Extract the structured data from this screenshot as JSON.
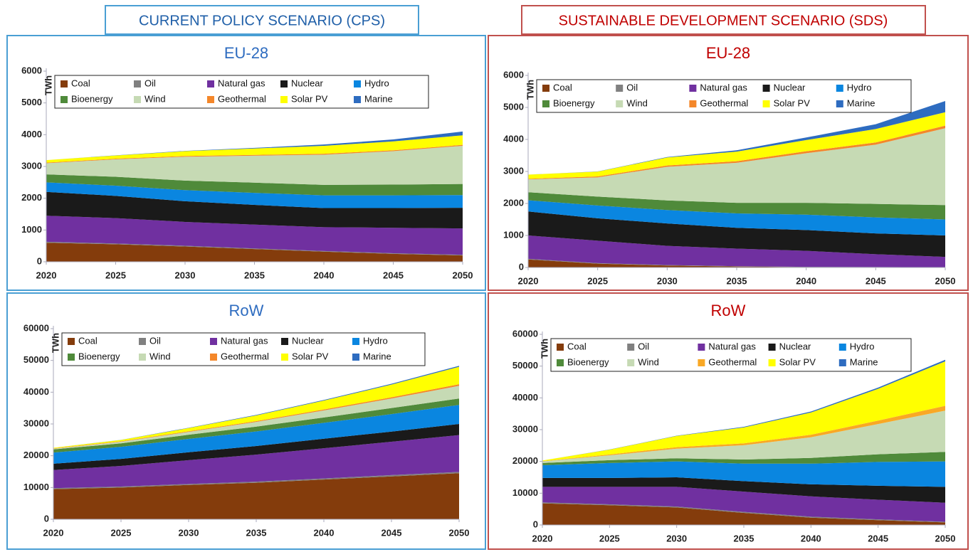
{
  "headers": [
    "CURRENT POLICY SCENARIO (CPS)",
    "SUSTAINABLE DEVELOPMENT SCENARIO (SDS)"
  ],
  "chart_data": [
    {
      "type": "stacked-area",
      "title": "EU-28",
      "y_label": "TWh",
      "x": [
        2020,
        2025,
        2030,
        2035,
        2040,
        2045,
        2050
      ],
      "xlim": [
        2020,
        2050
      ],
      "xticks": [
        2020,
        2025,
        2030,
        2035,
        2040,
        2045,
        2050
      ],
      "ylim": [
        0,
        6000
      ],
      "yticks": [
        0,
        1000,
        2000,
        3000,
        4000,
        5000,
        6000
      ],
      "series": [
        {
          "name": "Coal",
          "color": "#843c0c",
          "values": [
            600,
            550,
            480,
            400,
            320,
            250,
            200
          ]
        },
        {
          "name": "Oil",
          "color": "#808080",
          "values": [
            30,
            25,
            25,
            20,
            20,
            20,
            20
          ]
        },
        {
          "name": "Natural gas",
          "color": "#7030a0",
          "values": [
            820,
            800,
            750,
            750,
            750,
            800,
            830
          ]
        },
        {
          "name": "Nuclear",
          "color": "#1a1a1a",
          "values": [
            750,
            700,
            650,
            620,
            600,
            620,
            650
          ]
        },
        {
          "name": "Hydro",
          "color": "#0a86e0",
          "values": [
            300,
            320,
            350,
            380,
            400,
            400,
            400
          ]
        },
        {
          "name": "Bioenergy",
          "color": "#4f8a3a",
          "values": [
            250,
            280,
            300,
            320,
            330,
            340,
            350
          ]
        },
        {
          "name": "Wind",
          "color": "#c6dab4",
          "values": [
            350,
            550,
            750,
            850,
            950,
            1050,
            1200
          ]
        },
        {
          "name": "Geothermal",
          "color": "#f4872a",
          "values": [
            20,
            20,
            25,
            25,
            30,
            30,
            30
          ]
        },
        {
          "name": "Solar PV",
          "color": "#ffff00",
          "values": [
            80,
            100,
            150,
            200,
            250,
            280,
            300
          ]
        },
        {
          "name": "Marine",
          "color": "#2e6cc0",
          "values": [
            0,
            5,
            10,
            20,
            40,
            60,
            120
          ]
        }
      ]
    },
    {
      "type": "stacked-area",
      "title": "EU-28",
      "y_label": "TWh",
      "x": [
        2020,
        2025,
        2030,
        2035,
        2040,
        2045,
        2050
      ],
      "xlim": [
        2020,
        2050
      ],
      "xticks": [
        2020,
        2025,
        2030,
        2035,
        2040,
        2045,
        2050
      ],
      "ylim": [
        0,
        6000
      ],
      "yticks": [
        0,
        1000,
        2000,
        3000,
        4000,
        5000,
        6000
      ],
      "series": [
        {
          "name": "Coal",
          "color": "#843c0c",
          "values": [
            250,
            120,
            60,
            30,
            10,
            5,
            0
          ]
        },
        {
          "name": "Oil",
          "color": "#808080",
          "values": [
            20,
            15,
            15,
            10,
            10,
            10,
            5
          ]
        },
        {
          "name": "Natural gas",
          "color": "#7030a0",
          "values": [
            730,
            700,
            600,
            550,
            500,
            400,
            325
          ]
        },
        {
          "name": "Nuclear",
          "color": "#1a1a1a",
          "values": [
            750,
            700,
            700,
            650,
            650,
            650,
            670
          ]
        },
        {
          "name": "Hydro",
          "color": "#0a86e0",
          "values": [
            350,
            400,
            420,
            450,
            480,
            500,
            500
          ]
        },
        {
          "name": "Bioenergy",
          "color": "#4f8a3a",
          "values": [
            250,
            280,
            300,
            330,
            370,
            420,
            450
          ]
        },
        {
          "name": "Wind",
          "color": "#c6dab4",
          "values": [
            400,
            600,
            1050,
            1250,
            1550,
            1850,
            2400
          ]
        },
        {
          "name": "Geothermal",
          "color": "#f4872a",
          "values": [
            20,
            30,
            40,
            50,
            60,
            70,
            80
          ]
        },
        {
          "name": "Solar PV",
          "color": "#ffff00",
          "values": [
            130,
            150,
            250,
            300,
            350,
            420,
            420
          ]
        },
        {
          "name": "Marine",
          "color": "#2e6cc0",
          "values": [
            0,
            5,
            15,
            40,
            80,
            150,
            350
          ]
        }
      ]
    },
    {
      "type": "stacked-area",
      "title": "RoW",
      "y_label": "TWh",
      "x": [
        2020,
        2025,
        2030,
        2035,
        2040,
        2045,
        2050
      ],
      "xlim": [
        2020,
        2050
      ],
      "xticks": [
        2020,
        2025,
        2030,
        2035,
        2040,
        2045,
        2050
      ],
      "ylim": [
        0,
        60000
      ],
      "yticks": [
        0,
        10000,
        20000,
        30000,
        40000,
        50000,
        60000
      ],
      "series": [
        {
          "name": "Coal",
          "color": "#843c0c",
          "values": [
            9500,
            10000,
            10800,
            11500,
            12500,
            13500,
            14500
          ]
        },
        {
          "name": "Oil",
          "color": "#808080",
          "values": [
            300,
            300,
            300,
            350,
            350,
            400,
            400
          ]
        },
        {
          "name": "Natural gas",
          "color": "#7030a0",
          "values": [
            5700,
            6500,
            7500,
            8500,
            9500,
            10500,
            11600
          ]
        },
        {
          "name": "Nuclear",
          "color": "#1a1a1a",
          "values": [
            2000,
            2200,
            2500,
            2700,
            3000,
            3200,
            3500
          ]
        },
        {
          "name": "Hydro",
          "color": "#0a86e0",
          "values": [
            3500,
            3800,
            4200,
            4600,
            5000,
            5500,
            6000
          ]
        },
        {
          "name": "Bioenergy",
          "color": "#4f8a3a",
          "values": [
            1000,
            1100,
            1300,
            1500,
            1700,
            1900,
            2000
          ]
        },
        {
          "name": "Wind",
          "color": "#c6dab4",
          "values": [
            200,
            500,
            900,
            1500,
            2200,
            3000,
            4000
          ]
        },
        {
          "name": "Geothermal",
          "color": "#f4872a",
          "values": [
            100,
            150,
            200,
            250,
            300,
            400,
            500
          ]
        },
        {
          "name": "Solar PV",
          "color": "#ffff00",
          "values": [
            200,
            400,
            1000,
            1800,
            2800,
            4000,
            5500
          ]
        },
        {
          "name": "Marine",
          "color": "#2e6cc0",
          "values": [
            0,
            50,
            100,
            150,
            200,
            250,
            300
          ]
        }
      ]
    },
    {
      "type": "stacked-area",
      "title": "RoW",
      "y_label": "TWh",
      "x": [
        2020,
        2025,
        2030,
        2035,
        2040,
        2045,
        2050
      ],
      "xlim": [
        2020,
        2050
      ],
      "xticks": [
        2020,
        2025,
        2030,
        2035,
        2040,
        2045,
        2050
      ],
      "ylim": [
        0,
        60000
      ],
      "yticks": [
        0,
        10000,
        20000,
        30000,
        40000,
        50000,
        60000
      ],
      "series": [
        {
          "name": "Coal",
          "color": "#843c0c",
          "values": [
            6800,
            6200,
            5500,
            3800,
            2300,
            1500,
            800
          ]
        },
        {
          "name": "Oil",
          "color": "#808080",
          "values": [
            300,
            300,
            300,
            300,
            300,
            250,
            200
          ]
        },
        {
          "name": "Natural gas",
          "color": "#7030a0",
          "values": [
            4900,
            5500,
            6200,
            6400,
            6400,
            6200,
            6000
          ]
        },
        {
          "name": "Nuclear",
          "color": "#1a1a1a",
          "values": [
            2800,
            2800,
            3000,
            3300,
            3800,
            4400,
            5000
          ]
        },
        {
          "name": "Hydro",
          "color": "#0a86e0",
          "values": [
            4000,
            4700,
            5000,
            5500,
            6500,
            7500,
            8000
          ]
        },
        {
          "name": "Bioenergy",
          "color": "#4f8a3a",
          "values": [
            700,
            900,
            1000,
            1300,
            1800,
            2400,
            3000
          ]
        },
        {
          "name": "Wind",
          "color": "#c6dab4",
          "values": [
            500,
            1500,
            3000,
            4500,
            6500,
            9500,
            13000
          ]
        },
        {
          "name": "Geothermal",
          "color": "#f9a825",
          "values": [
            100,
            300,
            500,
            600,
            800,
            1100,
            1500
          ]
        },
        {
          "name": "Solar PV",
          "color": "#ffff00",
          "values": [
            200,
            1500,
            3500,
            5000,
            7000,
            10000,
            14000
          ]
        },
        {
          "name": "Marine",
          "color": "#2e6cc0",
          "values": [
            0,
            50,
            100,
            200,
            300,
            400,
            500
          ]
        }
      ]
    }
  ]
}
